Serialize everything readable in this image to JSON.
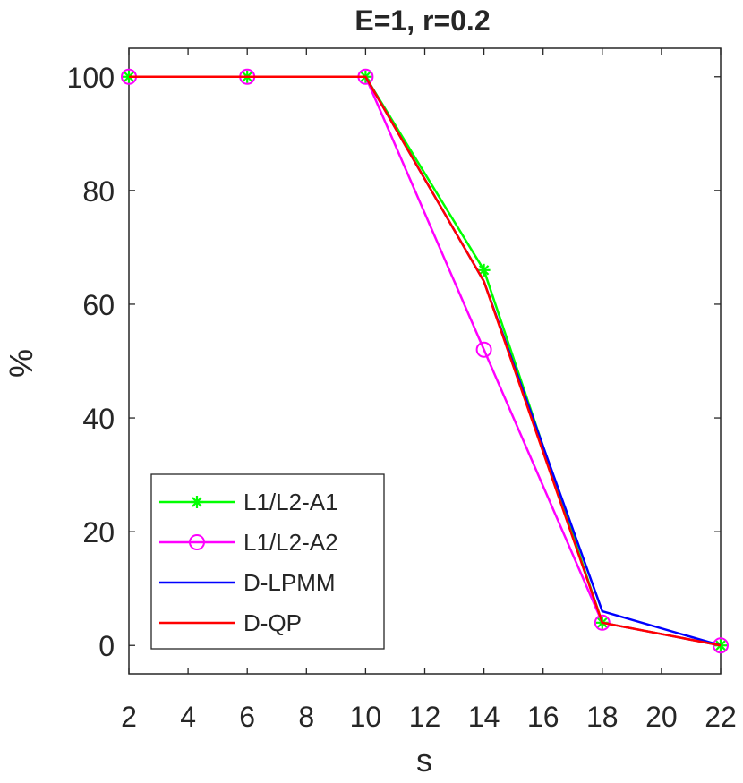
{
  "chart_data": {
    "type": "line",
    "title": "E=1, r=0.2",
    "xlabel": "s",
    "ylabel": "%",
    "xlim": [
      2,
      22
    ],
    "ylim": [
      -5,
      105
    ],
    "xticks": [
      2,
      4,
      6,
      8,
      10,
      12,
      14,
      16,
      18,
      20,
      22
    ],
    "yticks": [
      0,
      20,
      40,
      60,
      80,
      100
    ],
    "grid": false,
    "legend_position": "bottom-left",
    "x": [
      2,
      6,
      10,
      14,
      18,
      22
    ],
    "series": [
      {
        "name": "L1/L2-A1",
        "values": [
          100,
          100,
          100,
          66,
          4,
          0
        ],
        "color": "#00ff00",
        "marker": "asterisk"
      },
      {
        "name": "L1/L2-A2",
        "values": [
          100,
          100,
          100,
          52,
          4,
          0
        ],
        "color": "#ff00ff",
        "marker": "circle"
      },
      {
        "name": "D-LPMM",
        "values": [
          100,
          100,
          100,
          64,
          6,
          0
        ],
        "color": "#0000ff",
        "marker": "none"
      },
      {
        "name": "D-QP",
        "values": [
          100,
          100,
          100,
          64,
          4,
          0
        ],
        "color": "#ff0000",
        "marker": "none"
      }
    ]
  }
}
